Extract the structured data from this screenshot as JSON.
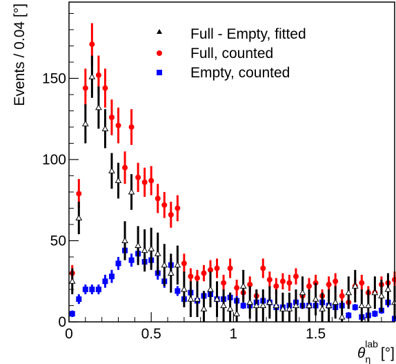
{
  "chart_data": {
    "type": "scatter",
    "title": "",
    "xlabel": "θ",
    "xlabel_subscript": "η",
    "xlabel_superscript": "lab",
    "xlabel_unit": "[°]",
    "ylabel": "Events / 0.04 [°]",
    "xlim": [
      0,
      1.98
    ],
    "ylim": [
      0,
      197
    ],
    "x_ticks": [
      0,
      0.5,
      1,
      1.5
    ],
    "x_tick_labels": [
      "0",
      "0.5",
      "1",
      "1.5"
    ],
    "y_ticks": [
      0,
      50,
      100,
      150
    ],
    "y_tick_labels": [
      "0",
      "50",
      "100",
      "150"
    ],
    "grid": false,
    "legend_position": "top-right",
    "series": [
      {
        "name": "Full - Empty, fitted",
        "marker": "triangle",
        "color": "#000000",
        "x": [
          0.02,
          0.06,
          0.1,
          0.14,
          0.18,
          0.22,
          0.26,
          0.3,
          0.34,
          0.38,
          0.42,
          0.46,
          0.5,
          0.54,
          0.58,
          0.62,
          0.66,
          0.7,
          0.74,
          0.78,
          0.82,
          0.86,
          0.9,
          0.94,
          0.98,
          1.02,
          1.06,
          1.1,
          1.14,
          1.18,
          1.22,
          1.26,
          1.3,
          1.34,
          1.38,
          1.42,
          1.46,
          1.5,
          1.54,
          1.58,
          1.62,
          1.66,
          1.7,
          1.74,
          1.78,
          1.82,
          1.86,
          1.9,
          1.94,
          1.98
        ],
        "y": [
          25,
          64,
          122,
          151,
          132,
          119,
          93,
          87,
          50,
          80,
          47,
          44,
          45,
          42,
          35,
          30,
          35,
          20,
          14,
          14,
          8,
          20,
          14,
          10,
          8,
          5,
          22,
          12,
          10,
          10,
          12,
          10,
          8,
          8,
          10,
          18,
          10,
          14,
          8,
          10,
          12,
          3,
          18,
          22,
          10,
          10,
          18,
          16,
          20,
          12
        ],
        "err": [
          8,
          10,
          12,
          13,
          13,
          12,
          11,
          11,
          12,
          11,
          12,
          13,
          13,
          13,
          13,
          12,
          12,
          11,
          11,
          11,
          11,
          11,
          11,
          10,
          10,
          10,
          10,
          10,
          10,
          10,
          10,
          10,
          10,
          10,
          10,
          10,
          10,
          10,
          10,
          10,
          10,
          10,
          10,
          10,
          10,
          10,
          10,
          10,
          10,
          10
        ]
      },
      {
        "name": "Full, counted",
        "marker": "circle",
        "color": "#ff0000",
        "x": [
          0.02,
          0.06,
          0.1,
          0.14,
          0.18,
          0.22,
          0.26,
          0.3,
          0.34,
          0.38,
          0.42,
          0.46,
          0.5,
          0.54,
          0.58,
          0.62,
          0.66,
          0.7,
          0.74,
          0.78,
          0.82,
          0.86,
          0.9,
          0.94,
          0.98,
          1.02,
          1.06,
          1.1,
          1.14,
          1.18,
          1.22,
          1.26,
          1.3,
          1.34,
          1.38,
          1.42,
          1.46,
          1.5,
          1.54,
          1.58,
          1.62,
          1.66,
          1.7,
          1.74,
          1.78,
          1.82,
          1.86,
          1.9,
          1.94,
          1.98
        ],
        "y": [
          30,
          79,
          144,
          171,
          152,
          144,
          126,
          121,
          95,
          120,
          89,
          86,
          87,
          76,
          72,
          66,
          70,
          36,
          28,
          27,
          30,
          32,
          33,
          24,
          33,
          21,
          18,
          23,
          16,
          33,
          26,
          22,
          25,
          24,
          28,
          16,
          22,
          24,
          16,
          23,
          25,
          16,
          12,
          22,
          24,
          18,
          18,
          23,
          24,
          26
        ],
        "err": [
          5,
          9,
          12,
          13,
          12,
          12,
          11,
          11,
          10,
          11,
          9,
          9,
          9,
          9,
          8,
          8,
          8,
          6,
          5,
          5,
          5,
          6,
          6,
          5,
          6,
          5,
          4,
          5,
          4,
          6,
          5,
          5,
          5,
          5,
          5,
          4,
          5,
          5,
          4,
          5,
          5,
          4,
          4,
          5,
          5,
          4,
          4,
          5,
          5,
          5
        ]
      },
      {
        "name": "Empty, counted",
        "marker": "square",
        "color": "#0000ff",
        "x": [
          0.02,
          0.06,
          0.1,
          0.14,
          0.18,
          0.22,
          0.26,
          0.3,
          0.34,
          0.38,
          0.42,
          0.46,
          0.5,
          0.54,
          0.58,
          0.62,
          0.66,
          0.7,
          0.74,
          0.78,
          0.82,
          0.86,
          0.9,
          0.94,
          0.98,
          1.02,
          1.06,
          1.1,
          1.14,
          1.18,
          1.22,
          1.26,
          1.3,
          1.34,
          1.38,
          1.42,
          1.46,
          1.5,
          1.54,
          1.58,
          1.62,
          1.66,
          1.7,
          1.74,
          1.78,
          1.82,
          1.86,
          1.9,
          1.94,
          1.98
        ],
        "y": [
          5,
          14,
          20,
          20,
          20,
          25,
          28,
          36,
          44,
          38,
          42,
          37,
          38,
          30,
          25,
          35,
          19,
          14,
          18,
          13,
          16,
          17,
          14,
          14,
          15,
          13,
          10,
          10,
          12,
          13,
          12,
          9,
          9,
          10,
          12,
          10,
          10,
          10,
          12,
          10,
          9,
          10,
          4,
          9,
          3,
          4,
          5,
          7,
          12,
          2
        ],
        "err": [
          2,
          3,
          3,
          3,
          3,
          4,
          4,
          4,
          5,
          4,
          5,
          4,
          4,
          4,
          4,
          4,
          3,
          3,
          3,
          3,
          3,
          3,
          3,
          3,
          3,
          3,
          2,
          2,
          3,
          3,
          3,
          2,
          2,
          2,
          3,
          2,
          2,
          2,
          3,
          2,
          2,
          2,
          2,
          2,
          1,
          2,
          2,
          2,
          3,
          1
        ]
      }
    ]
  }
}
